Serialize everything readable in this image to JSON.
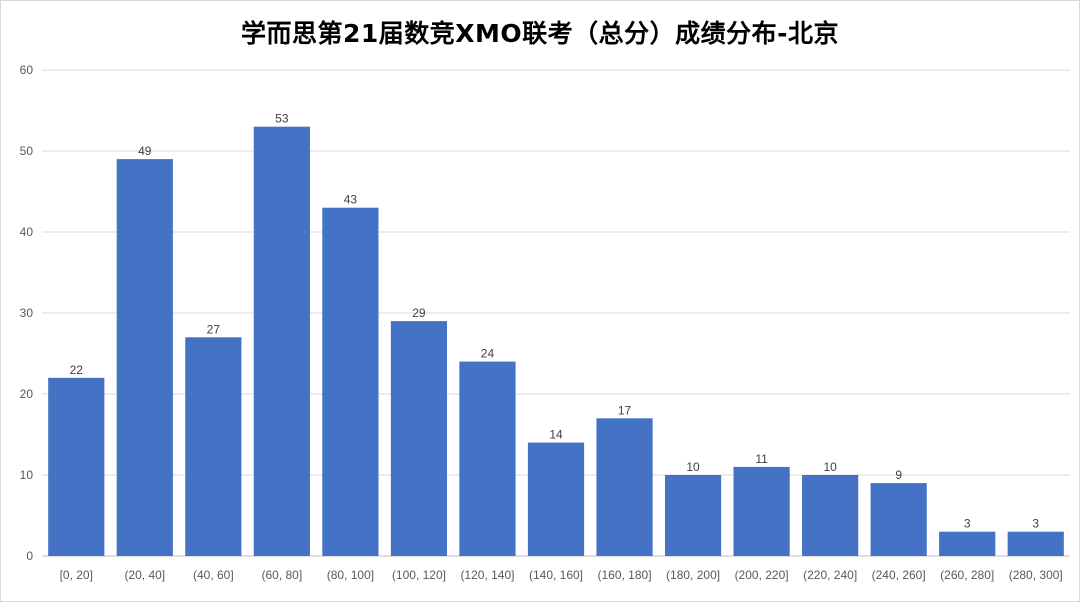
{
  "chart_data": {
    "type": "bar",
    "title": "学而思第21届数竞XMO联考（总分）成绩分布-北京",
    "xlabel": "",
    "ylabel": "",
    "ylim": [
      0,
      60
    ],
    "yticks": [
      "0",
      "10",
      "20",
      "30",
      "40",
      "50",
      "60"
    ],
    "grid": true,
    "legend": "none",
    "bar_color": "#4472c4",
    "categories": [
      "[0, 20]",
      "(20, 40]",
      "(40, 60]",
      "(60, 80]",
      "(80, 100]",
      "(100, 120]",
      "(120, 140]",
      "(140, 160]",
      "(160, 180]",
      "(180, 200]",
      "(200, 220]",
      "(220, 240]",
      "(240, 260]",
      "(260, 280]",
      "(280, 300]"
    ],
    "values": [
      22,
      49,
      27,
      53,
      43,
      29,
      24,
      14,
      17,
      10,
      11,
      10,
      9,
      3,
      3
    ]
  }
}
